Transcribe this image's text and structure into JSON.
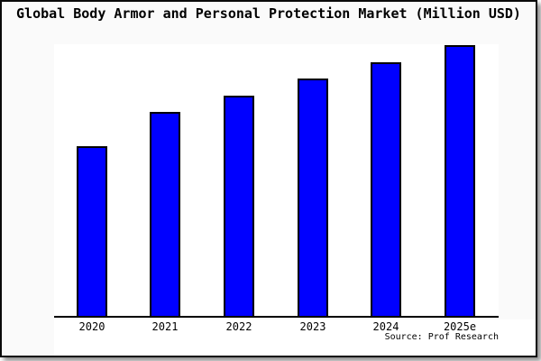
{
  "chart": {
    "title": "Global Body Armor and Personal Protection Market (Million USD)",
    "source_note": "Source: Prof Research",
    "colors": {
      "background": "#fafafa",
      "plot_background": "#ffffff",
      "bar_fill": "#0000ff",
      "bar_border": "#000000",
      "axis_line": "#000000",
      "frame_border": "#0a0a0a",
      "text": "#000000"
    }
  },
  "chart_data": {
    "type": "bar",
    "categories": [
      "2020",
      "2021",
      "2022",
      "2023",
      "2024",
      "2025e"
    ],
    "values": [
      62.6,
      75.2,
      81.5,
      87.8,
      93.7,
      100
    ],
    "value_unit": "relative index (no y-axis scale shown; 2025e bar = 100)",
    "title": "Global Body Armor and Personal Protection Market (Million USD)",
    "xlabel": "",
    "ylabel": "",
    "ylim": [
      0,
      100
    ],
    "grid": false,
    "legend": false,
    "annotations": [
      "Source: Prof Research"
    ]
  }
}
